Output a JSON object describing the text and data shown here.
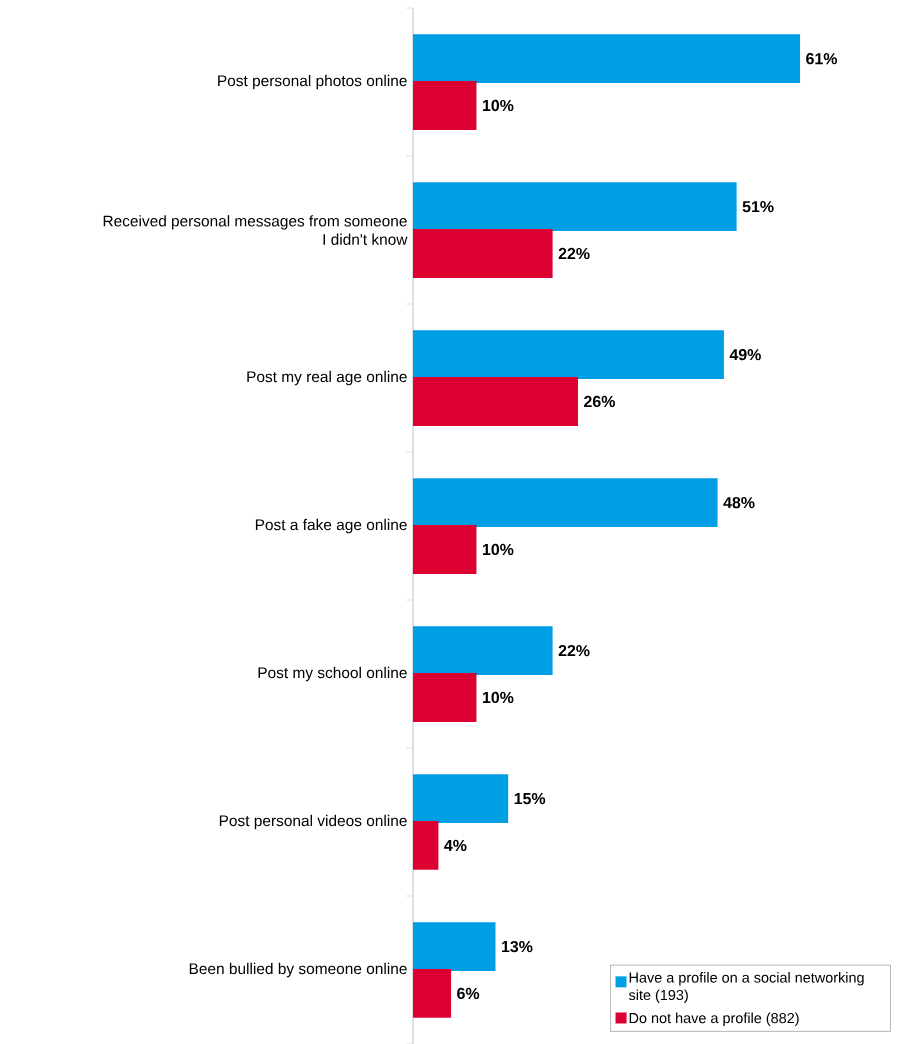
{
  "chart_data": {
    "type": "bar",
    "orientation": "horizontal",
    "categories": [
      "Post personal photos online",
      "Received personal messages from someone I didn't know",
      "Post my real age online",
      "Post a fake age online",
      "Post my school online",
      "Post personal videos online",
      "Been bullied by someone online"
    ],
    "series": [
      {
        "name": "Have a profile on a social networking site (193)",
        "color": "#009fe3",
        "values": [
          61,
          51,
          49,
          48,
          22,
          15,
          13
        ],
        "value_labels": [
          "61%",
          "51%",
          "49%",
          "48%",
          "22%",
          "15%",
          "13%"
        ]
      },
      {
        "name": "Do not have a profile (882)",
        "color": "#dc0032",
        "values": [
          10,
          22,
          26,
          10,
          10,
          4,
          6
        ],
        "value_labels": [
          "10%",
          "22%",
          "26%",
          "10%",
          "10%",
          "4%",
          "6%"
        ]
      }
    ],
    "legend": "bottom right"
  }
}
